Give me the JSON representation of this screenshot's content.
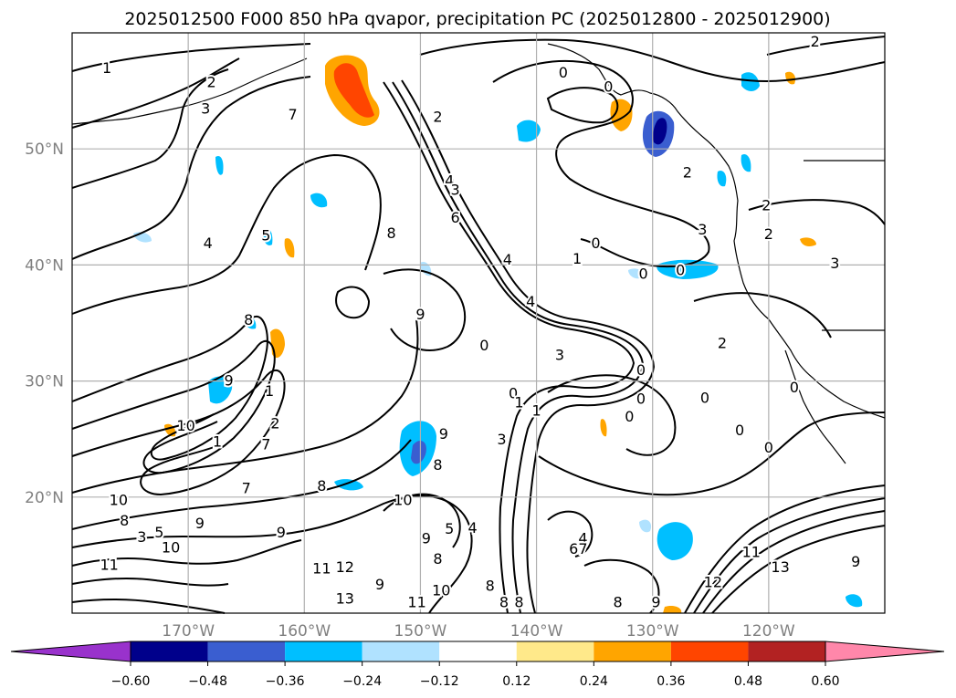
{
  "chart_data": {
    "type": "contour",
    "title": "2025012500 F000 850 hPa qvapor, precipitation PC (2025012800 - 2025012900)",
    "colors": {
      "axis": "#000000",
      "grid": "#b0b0b0",
      "tick_labels": "#808080",
      "contour": "#000000"
    },
    "longitude_range": [
      -180,
      -110
    ],
    "latitude_range": [
      10,
      60
    ],
    "x_ticks": [
      {
        "value": -170,
        "label": "170°W"
      },
      {
        "value": -160,
        "label": "160°W"
      },
      {
        "value": -150,
        "label": "150°W"
      },
      {
        "value": -140,
        "label": "140°W"
      },
      {
        "value": -130,
        "label": "130°W"
      },
      {
        "value": -120,
        "label": "120°W"
      }
    ],
    "y_ticks": [
      {
        "value": 20,
        "label": "20°N"
      },
      {
        "value": 30,
        "label": "30°N"
      },
      {
        "value": 40,
        "label": "40°N"
      },
      {
        "value": 50,
        "label": "50°N"
      }
    ],
    "grid": true,
    "colorbar": {
      "orientation": "horizontal",
      "extend": "both",
      "boundaries": [
        -0.72,
        -0.6,
        -0.48,
        -0.36,
        -0.24,
        -0.12,
        0.12,
        0.24,
        0.36,
        0.48,
        0.6,
        0.72
      ],
      "colors": [
        "#9932cc",
        "#00008b",
        "#3a5ed0",
        "#00bfff",
        "#b0e2ff",
        "#ffffff",
        "#ffe98a",
        "#ffa500",
        "#ff4500",
        "#b22222",
        "#ff87aa"
      ],
      "tick_labels": [
        "-0.60",
        "-0.48",
        "-0.36",
        "-0.24",
        "-0.12",
        "0.12",
        "0.24",
        "0.36",
        "0.48",
        "0.60"
      ]
    },
    "contour_labels": [
      {
        "lon": -177,
        "lat": 57.0,
        "text": "1"
      },
      {
        "lon": -168.5,
        "lat": 53.5,
        "text": "3"
      },
      {
        "lon": -168.0,
        "lat": 55.8,
        "text": "2"
      },
      {
        "lon": -161.0,
        "lat": 53.0,
        "text": "7"
      },
      {
        "lon": -148.5,
        "lat": 52.8,
        "text": "2"
      },
      {
        "lon": -137.7,
        "lat": 56.6,
        "text": "0"
      },
      {
        "lon": -133.8,
        "lat": 55.4,
        "text": "0"
      },
      {
        "lon": -116.0,
        "lat": 59.3,
        "text": "2"
      },
      {
        "lon": -147.5,
        "lat": 47.3,
        "text": "4"
      },
      {
        "lon": -147.0,
        "lat": 46.5,
        "text": "3"
      },
      {
        "lon": -147.0,
        "lat": 44.1,
        "text": "6"
      },
      {
        "lon": -127.0,
        "lat": 48.0,
        "text": "2"
      },
      {
        "lon": -120.0,
        "lat": 42.7,
        "text": "2"
      },
      {
        "lon": -125.7,
        "lat": 43.1,
        "text": "3"
      },
      {
        "lon": -120.2,
        "lat": 45.2,
        "text": "2"
      },
      {
        "lon": -163.3,
        "lat": 42.6,
        "text": "5"
      },
      {
        "lon": -168.3,
        "lat": 41.9,
        "text": "4"
      },
      {
        "lon": -152.5,
        "lat": 42.8,
        "text": "8"
      },
      {
        "lon": -142.5,
        "lat": 40.5,
        "text": "4"
      },
      {
        "lon": -136.5,
        "lat": 40.6,
        "text": "1"
      },
      {
        "lon": -134.9,
        "lat": 41.9,
        "text": "0"
      },
      {
        "lon": -130.8,
        "lat": 39.3,
        "text": "0"
      },
      {
        "lon": -127.6,
        "lat": 39.6,
        "text": "0"
      },
      {
        "lon": -114.3,
        "lat": 40.2,
        "text": "3"
      },
      {
        "lon": -140.5,
        "lat": 36.9,
        "text": "4"
      },
      {
        "lon": -150.0,
        "lat": 35.8,
        "text": "9"
      },
      {
        "lon": -144.5,
        "lat": 33.1,
        "text": "0"
      },
      {
        "lon": -138.0,
        "lat": 32.3,
        "text": "3"
      },
      {
        "lon": -131.0,
        "lat": 31.0,
        "text": "0"
      },
      {
        "lon": -124.0,
        "lat": 33.3,
        "text": "2"
      },
      {
        "lon": -117.8,
        "lat": 29.5,
        "text": "0"
      },
      {
        "lon": -164.8,
        "lat": 35.3,
        "text": "8"
      },
      {
        "lon": -166.5,
        "lat": 30.1,
        "text": "9"
      },
      {
        "lon": -163.0,
        "lat": 29.2,
        "text": "1"
      },
      {
        "lon": -170.2,
        "lat": 26.2,
        "text": "10"
      },
      {
        "lon": -167.5,
        "lat": 24.8,
        "text": "1"
      },
      {
        "lon": -163.3,
        "lat": 24.6,
        "text": "7"
      },
      {
        "lon": -162.5,
        "lat": 26.4,
        "text": "2"
      },
      {
        "lon": -165.0,
        "lat": 20.8,
        "text": "7"
      },
      {
        "lon": -142.0,
        "lat": 29.0,
        "text": "0"
      },
      {
        "lon": -141.5,
        "lat": 28.2,
        "text": "1"
      },
      {
        "lon": -140.0,
        "lat": 27.5,
        "text": "1"
      },
      {
        "lon": -143.0,
        "lat": 25.0,
        "text": "3"
      },
      {
        "lon": -131.0,
        "lat": 28.5,
        "text": "0"
      },
      {
        "lon": -132.0,
        "lat": 27.0,
        "text": "0"
      },
      {
        "lon": -125.5,
        "lat": 28.6,
        "text": "0"
      },
      {
        "lon": -122.5,
        "lat": 25.8,
        "text": "0"
      },
      {
        "lon": -120.0,
        "lat": 24.3,
        "text": "0"
      },
      {
        "lon": -148.0,
        "lat": 25.5,
        "text": "9"
      },
      {
        "lon": -148.5,
        "lat": 22.8,
        "text": "8"
      },
      {
        "lon": -158.5,
        "lat": 21.0,
        "text": "8"
      },
      {
        "lon": -151.5,
        "lat": 19.8,
        "text": "10"
      },
      {
        "lon": -176.0,
        "lat": 19.8,
        "text": "10"
      },
      {
        "lon": -175.5,
        "lat": 18.0,
        "text": "8"
      },
      {
        "lon": -174.0,
        "lat": 16.6,
        "text": "3"
      },
      {
        "lon": -171.5,
        "lat": 15.7,
        "text": "10"
      },
      {
        "lon": -169.0,
        "lat": 17.8,
        "text": "9"
      },
      {
        "lon": -172.5,
        "lat": 17.0,
        "text": "5"
      },
      {
        "lon": -162.0,
        "lat": 17.0,
        "text": "9"
      },
      {
        "lon": -158.5,
        "lat": 13.9,
        "text": "11"
      },
      {
        "lon": -156.5,
        "lat": 14.0,
        "text": "12"
      },
      {
        "lon": -176.8,
        "lat": 14.2,
        "text": "11"
      },
      {
        "lon": -153.5,
        "lat": 12.5,
        "text": "9"
      },
      {
        "lon": -148.5,
        "lat": 14.7,
        "text": "8"
      },
      {
        "lon": -149.5,
        "lat": 16.5,
        "text": "9"
      },
      {
        "lon": -148.2,
        "lat": 12.0,
        "text": "10"
      },
      {
        "lon": -150.3,
        "lat": 11.0,
        "text": "11"
      },
      {
        "lon": -147.5,
        "lat": 17.3,
        "text": "5"
      },
      {
        "lon": -145.5,
        "lat": 17.4,
        "text": "4"
      },
      {
        "lon": -144.0,
        "lat": 12.4,
        "text": "8"
      },
      {
        "lon": -141.5,
        "lat": 11.0,
        "text": "8"
      },
      {
        "lon": -142.8,
        "lat": 11.0,
        "text": "8"
      },
      {
        "lon": -136.0,
        "lat": 16.5,
        "text": "4"
      },
      {
        "lon": -136.8,
        "lat": 15.6,
        "text": "6"
      },
      {
        "lon": -136.0,
        "lat": 15.6,
        "text": "7"
      },
      {
        "lon": -133.0,
        "lat": 11.0,
        "text": "8"
      },
      {
        "lon": -129.7,
        "lat": 11.0,
        "text": "9"
      },
      {
        "lon": -124.8,
        "lat": 12.7,
        "text": "12"
      },
      {
        "lon": -121.5,
        "lat": 15.3,
        "text": "11"
      },
      {
        "lon": -119.0,
        "lat": 14.0,
        "text": "13"
      },
      {
        "lon": -156.5,
        "lat": 11.3,
        "text": "13"
      },
      {
        "lon": -112.5,
        "lat": 14.5,
        "text": "9"
      }
    ]
  }
}
